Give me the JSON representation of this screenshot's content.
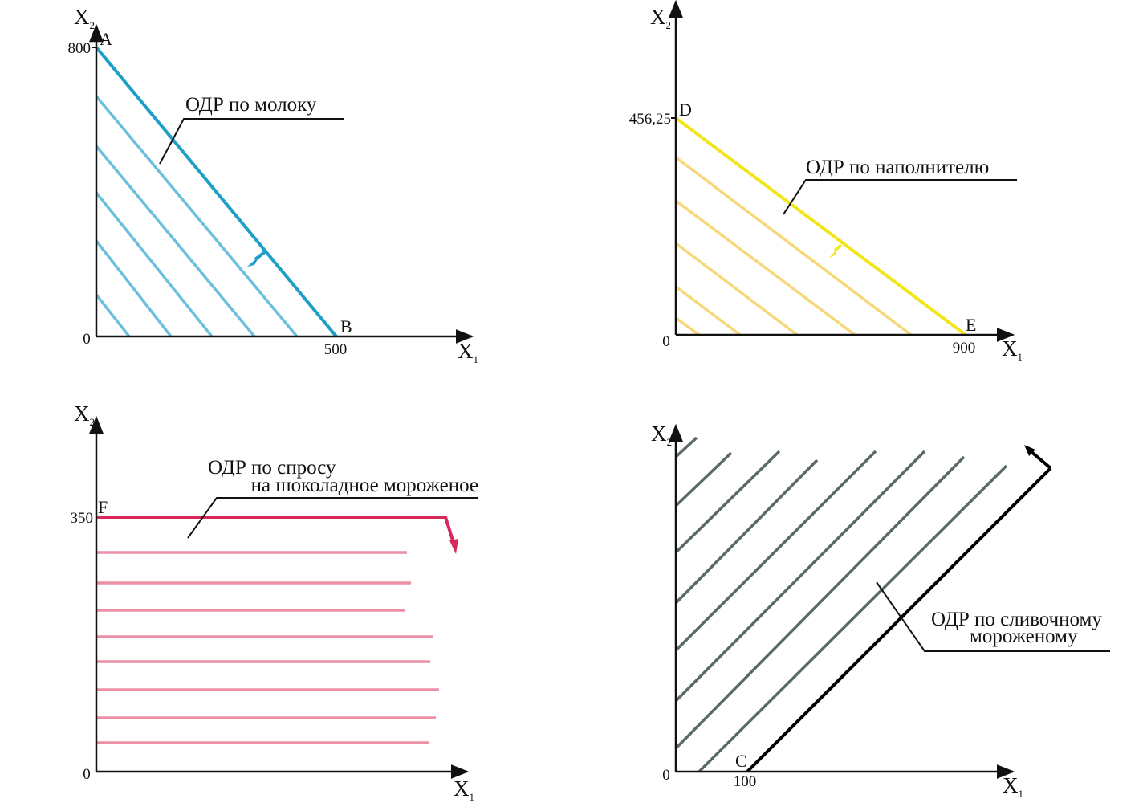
{
  "panels": {
    "milk": {
      "axis_x": "X",
      "axis_x_sub": "1",
      "axis_y": "X",
      "axis_y_sub": "2",
      "tick_y": "800",
      "tick_x": "500",
      "origin": "0",
      "point_top": "A",
      "point_right": "B",
      "label_line1": "ОДР по молоку",
      "color": "#1e9fc8",
      "hatch_color": "#6cc0de"
    },
    "filler": {
      "axis_x": "X",
      "axis_x_sub": "1",
      "axis_y": "X",
      "axis_y_sub": "2",
      "tick_y": "456,25",
      "tick_x": "900",
      "origin": "0",
      "point_top": "D",
      "point_right": "E",
      "label_line1": "ОДР по наполнителю",
      "color": "#f2e51a",
      "hatch_color": "#f7d77a"
    },
    "chocolate": {
      "axis_x": "X",
      "axis_x_sub": "1",
      "axis_y": "X",
      "axis_y_sub": "2",
      "tick_y": "350",
      "origin": "0",
      "point_top": "F",
      "label_line1": "ОДР по спросу",
      "label_line2": "на шоколадное мороженое",
      "color": "#d6285a",
      "hatch_color": "#ec8fa6"
    },
    "cream": {
      "axis_x": "X",
      "axis_x_sub": "1",
      "axis_y": "X",
      "axis_y_sub": "2",
      "tick_x": "100",
      "origin": "0",
      "point_bottom": "C",
      "label_line1": "ОДР по сливочному",
      "label_line2": "мороженому",
      "color": "#000000",
      "hatch_color": "#5a6a66"
    }
  }
}
